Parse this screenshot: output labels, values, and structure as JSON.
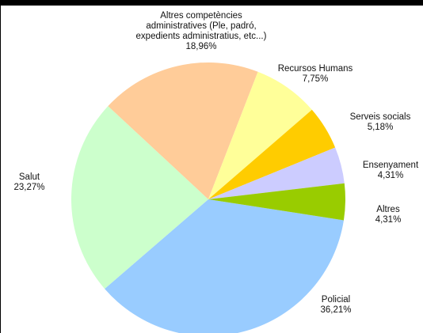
{
  "chart_data": {
    "type": "pie",
    "title": "",
    "legend": "none",
    "slices": [
      {
        "label_lines": [
          "Policial"
        ],
        "value_label": "36,21%",
        "value": 36.21,
        "color": "#99ccff"
      },
      {
        "label_lines": [
          "Salut"
        ],
        "value_label": "23,27%",
        "value": 23.27,
        "color": "#ccffcc"
      },
      {
        "label_lines": [
          "Altres competències",
          "administratives (Ple, padró,",
          "expedients administratius, etc...)"
        ],
        "value_label": "18,96%",
        "value": 18.96,
        "color": "#ffcc99"
      },
      {
        "label_lines": [
          "Recursos Humans"
        ],
        "value_label": "7,75%",
        "value": 7.75,
        "color": "#ffff99"
      },
      {
        "label_lines": [
          "Serveis socials"
        ],
        "value_label": "5,18%",
        "value": 5.18,
        "color": "#ffcc00"
      },
      {
        "label_lines": [
          "Ensenyament"
        ],
        "value_label": "4,31%",
        "value": 4.31,
        "color": "#ccccff"
      },
      {
        "label_lines": [
          "Altres"
        ],
        "value_label": "4,31%",
        "value": 4.31,
        "color": "#99cc00"
      }
    ]
  }
}
